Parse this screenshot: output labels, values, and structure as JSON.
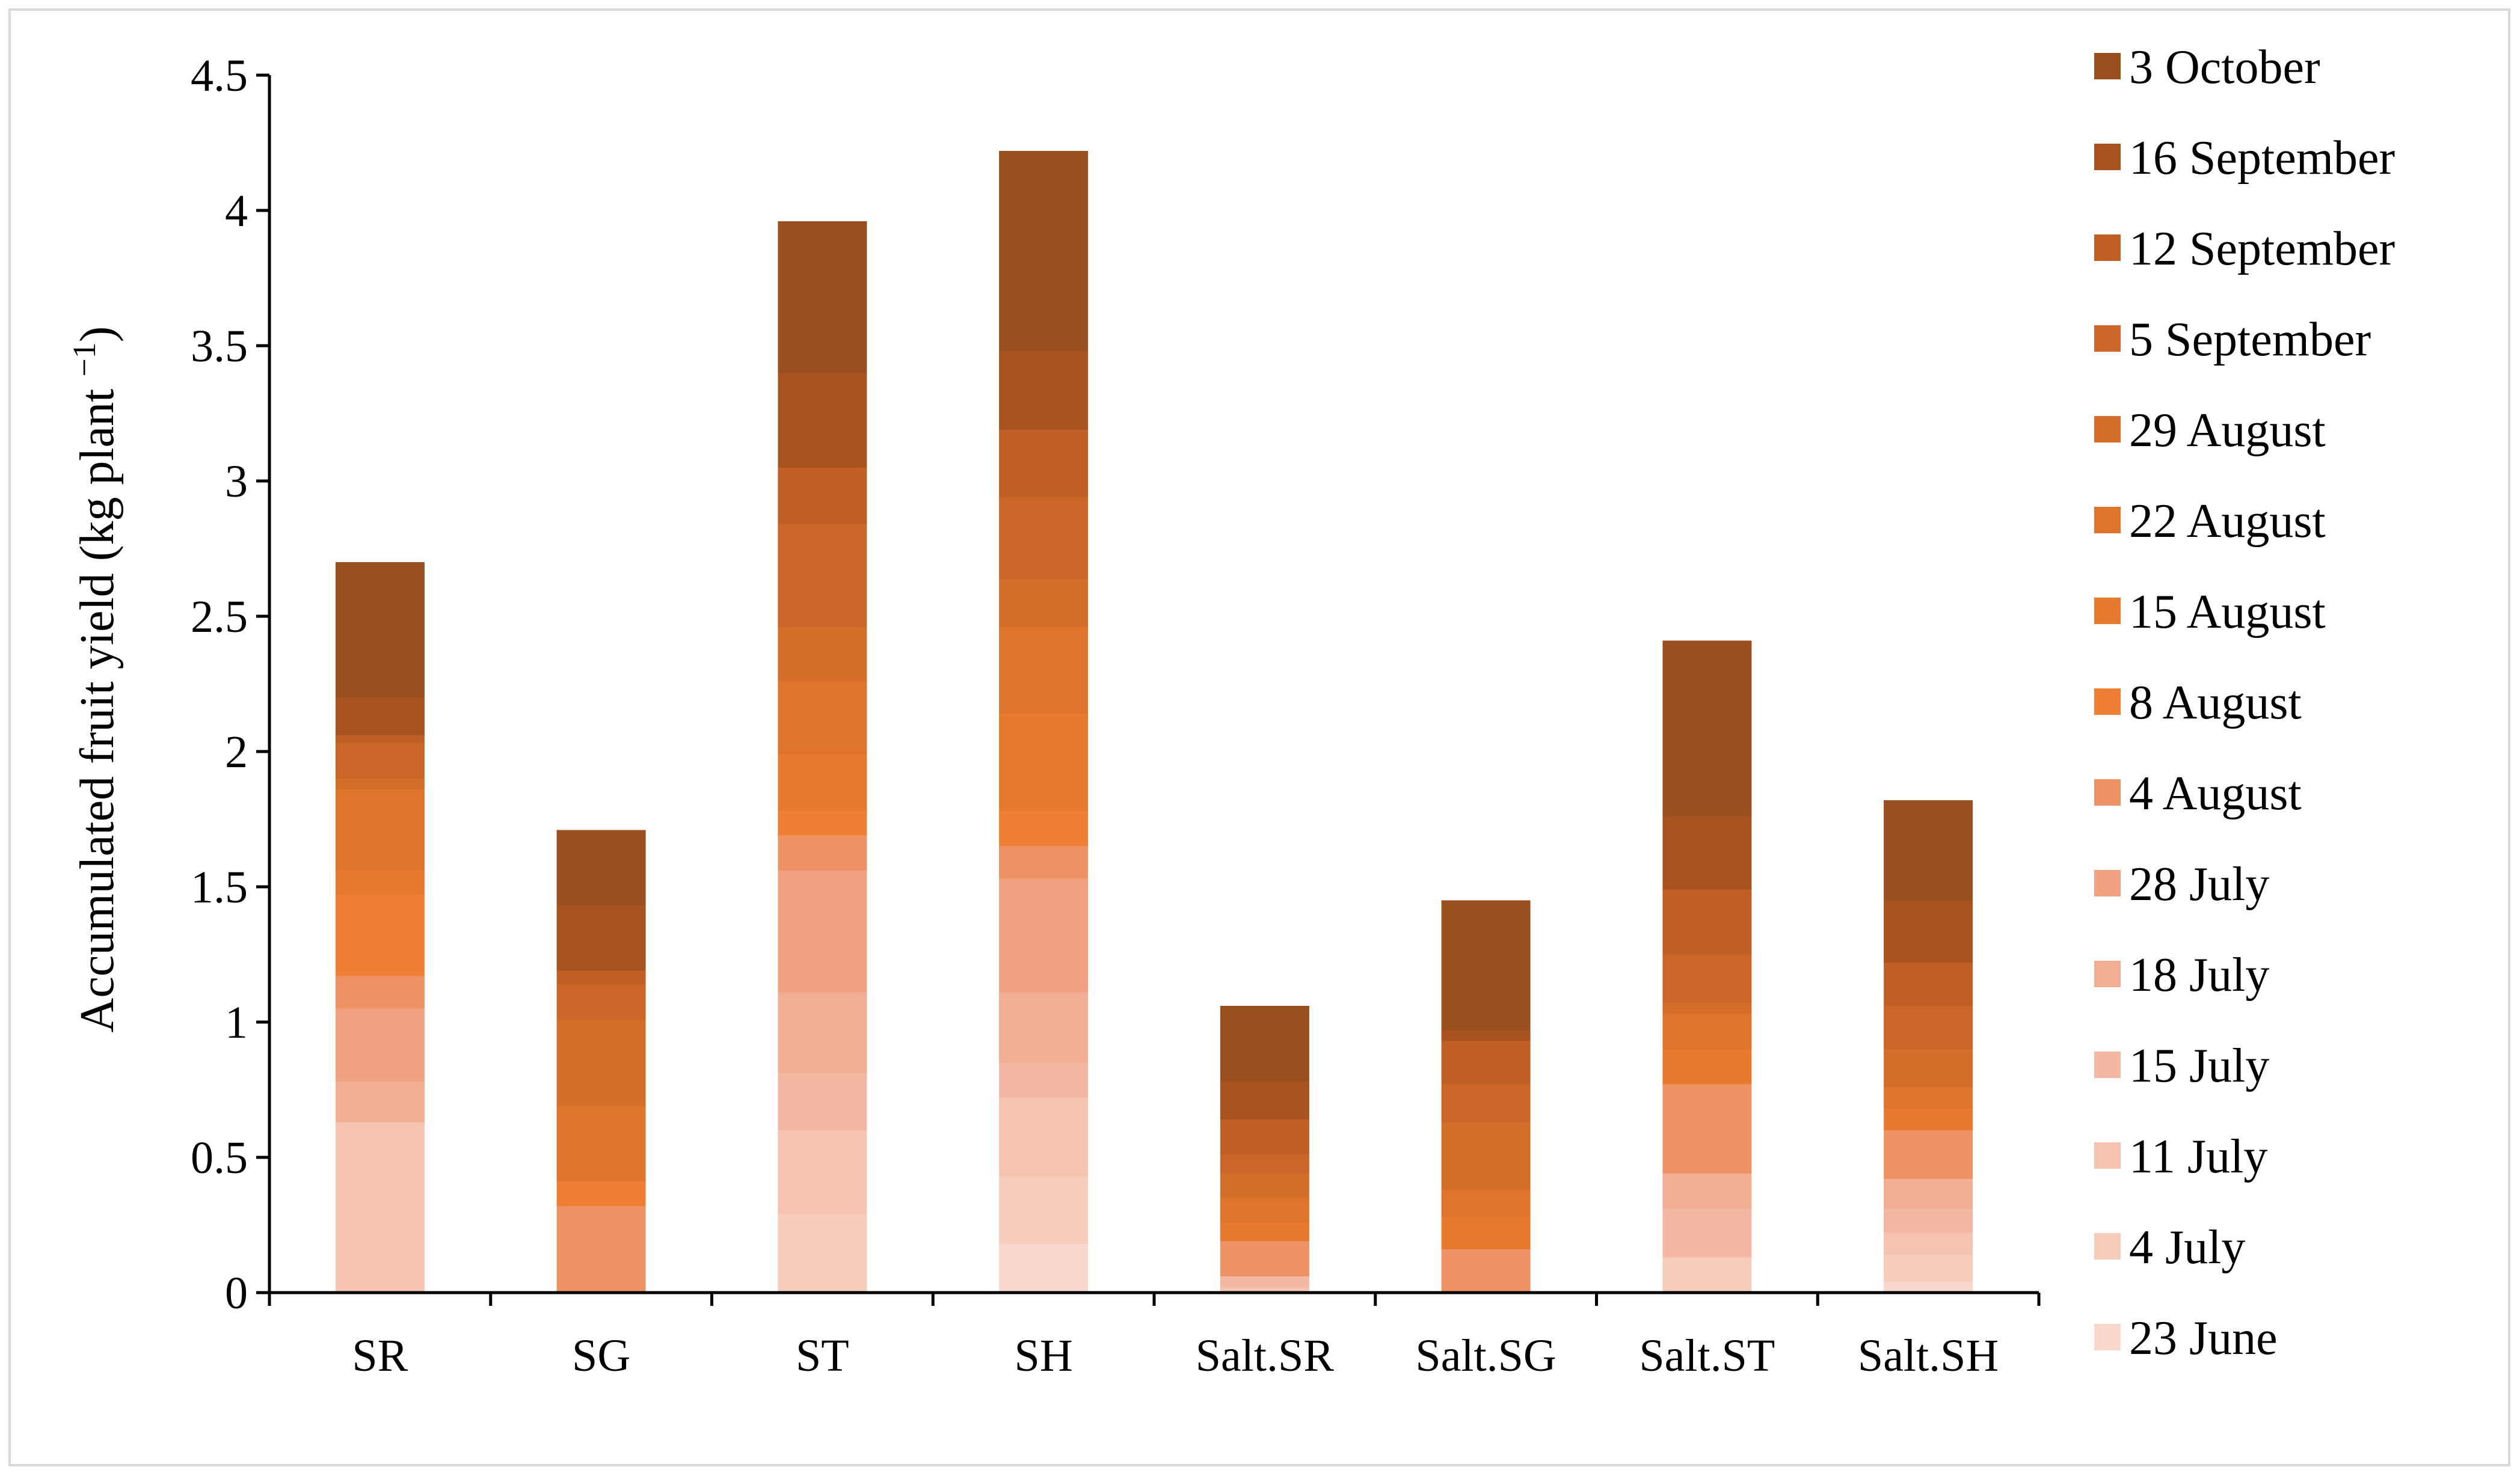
{
  "chart_data": {
    "type": "bar",
    "stacked": true,
    "title": "",
    "xlabel": "",
    "ylabel": "Accumulated fruit yield (kg plant −1)",
    "ylabel_main": "Accumulated fruit yield (kg plant ",
    "ylabel_sup": "−1",
    "ylabel_close": ")",
    "ylim": [
      0,
      4.5
    ],
    "yticks": [
      "0",
      "0.5",
      "1",
      "1.5",
      "2",
      "2.5",
      "3",
      "3.5",
      "4",
      "4.5"
    ],
    "ytick_values": [
      0,
      0.5,
      1,
      1.5,
      2,
      2.5,
      3,
      3.5,
      4,
      4.5
    ],
    "grid": false,
    "legend_placement": "right",
    "categories": [
      "SR",
      "SG",
      "ST",
      "SH",
      "Salt.SR",
      "Salt.SG",
      "Salt.ST",
      "Salt.SH"
    ],
    "series": [
      {
        "name": "23 June",
        "color": "#f8d8cc",
        "values": [
          0.0,
          0.0,
          0.0,
          0.18,
          0.0,
          0.0,
          0.0,
          0.04
        ]
      },
      {
        "name": "4 July",
        "color": "#f6ccbd",
        "values": [
          0.0,
          0.0,
          0.29,
          0.25,
          0.0,
          0.0,
          0.13,
          0.1
        ]
      },
      {
        "name": "11 July",
        "color": "#f4c4b0",
        "values": [
          0.63,
          0.0,
          0.31,
          0.29,
          0.02,
          0.0,
          0.0,
          0.08
        ]
      },
      {
        "name": "15 July",
        "color": "#f2b8a2",
        "values": [
          0.0,
          0.0,
          0.21,
          0.13,
          0.04,
          0.0,
          0.18,
          0.09
        ]
      },
      {
        "name": "18 July",
        "color": "#f1ae94",
        "values": [
          0.15,
          0.0,
          0.3,
          0.26,
          0.0,
          0.0,
          0.13,
          0.11
        ]
      },
      {
        "name": "28 July",
        "color": "#f0a283",
        "values": [
          0.27,
          0.0,
          0.45,
          0.42,
          0.0,
          0.0,
          0.0,
          0.0
        ]
      },
      {
        "name": "4 August",
        "color": "#ee9366",
        "values": [
          0.12,
          0.32,
          0.13,
          0.12,
          0.13,
          0.16,
          0.33,
          0.18
        ]
      },
      {
        "name": "8 August",
        "color": "#ee7f35",
        "values": [
          0.3,
          0.09,
          0.09,
          0.13,
          0.0,
          0.0,
          0.0,
          0.0
        ]
      },
      {
        "name": "15 August",
        "color": "#e87a30",
        "values": [
          0.09,
          0.0,
          0.21,
          0.36,
          0.07,
          0.12,
          0.13,
          0.08
        ]
      },
      {
        "name": "22 August",
        "color": "#df742c",
        "values": [
          0.3,
          0.28,
          0.27,
          0.32,
          0.09,
          0.1,
          0.13,
          0.08
        ]
      },
      {
        "name": "29 August",
        "color": "#d66e2b",
        "values": [
          0.04,
          0.32,
          0.2,
          0.18,
          0.09,
          0.25,
          0.04,
          0.14
        ]
      },
      {
        "name": "5 September",
        "color": "#cc6628",
        "values": [
          0.13,
          0.13,
          0.38,
          0.3,
          0.07,
          0.14,
          0.18,
          0.16
        ]
      },
      {
        "name": "12 September",
        "color": "#c05f26",
        "values": [
          0.03,
          0.05,
          0.21,
          0.25,
          0.13,
          0.16,
          0.24,
          0.16
        ]
      },
      {
        "name": "16 September",
        "color": "#a7521f",
        "values": [
          0.14,
          0.24,
          0.35,
          0.29,
          0.14,
          0.04,
          0.27,
          0.23
        ]
      },
      {
        "name": "3 October",
        "color": "#9a4f1e",
        "values": [
          0.5,
          0.28,
          0.56,
          0.74,
          0.28,
          0.48,
          0.65,
          0.37
        ]
      }
    ]
  }
}
